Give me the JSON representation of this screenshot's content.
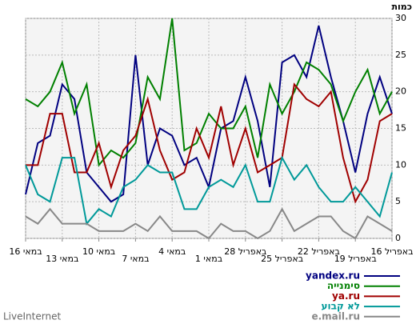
{
  "chart_data": {
    "type": "line",
    "ylabel": "כמות",
    "categories": [
      "16 במאי",
      null,
      null,
      "13 במאי",
      null,
      null,
      "10 במאי",
      null,
      null,
      "7 במאי",
      null,
      null,
      "4 במאי",
      null,
      null,
      "1 במאי",
      null,
      null,
      "28 באפריל",
      null,
      null,
      "25 באפריל",
      null,
      null,
      "22 באפריל",
      null,
      null,
      "19 באפריל",
      null,
      null,
      "16 באפריל"
    ],
    "ylim": [
      0,
      30
    ],
    "yticks": [
      0,
      5,
      10,
      15,
      20,
      25,
      30
    ],
    "grid": true,
    "series": [
      {
        "name": "yandex.ru",
        "color": "#000080",
        "values": [
          6,
          13,
          14,
          21,
          19,
          9,
          7,
          5,
          6,
          25,
          10,
          15,
          14,
          10,
          11,
          7,
          15,
          16,
          22,
          16,
          7,
          24,
          25,
          22,
          29,
          22,
          16,
          9,
          17,
          22,
          17
        ]
      },
      {
        "name": "סימנייה",
        "color": "#008000",
        "values": [
          19,
          18,
          20,
          24,
          17,
          21,
          10,
          12,
          11,
          13,
          22,
          19,
          30,
          12,
          13,
          17,
          15,
          15,
          18,
          11,
          21,
          17,
          20,
          24,
          23,
          21,
          16,
          20,
          23,
          17,
          20
        ]
      },
      {
        "name": "ya.ru",
        "color": "#a00000",
        "values": [
          10,
          10,
          17,
          17,
          9,
          9,
          13,
          7,
          12,
          14,
          19,
          12,
          8,
          9,
          15,
          11,
          18,
          10,
          15,
          9,
          10,
          11,
          21,
          19,
          18,
          20,
          11,
          5,
          8,
          16,
          17
        ]
      },
      {
        "name": "לא קבוע",
        "color": "#009999",
        "values": [
          10,
          6,
          5,
          11,
          11,
          2,
          4,
          3,
          7,
          8,
          10,
          9,
          9,
          4,
          4,
          7,
          8,
          7,
          10,
          5,
          5,
          11,
          8,
          10,
          7,
          5,
          5,
          7,
          5,
          3,
          9
        ]
      },
      {
        "name": "e.mail.ru",
        "color": "#888888",
        "values": [
          3,
          2,
          4,
          2,
          2,
          2,
          1,
          1,
          1,
          2,
          1,
          3,
          1,
          1,
          1,
          0,
          2,
          1,
          1,
          0,
          1,
          4,
          1,
          2,
          3,
          3,
          1,
          0,
          3,
          2,
          1
        ]
      }
    ],
    "footer": "LiveInternet"
  }
}
